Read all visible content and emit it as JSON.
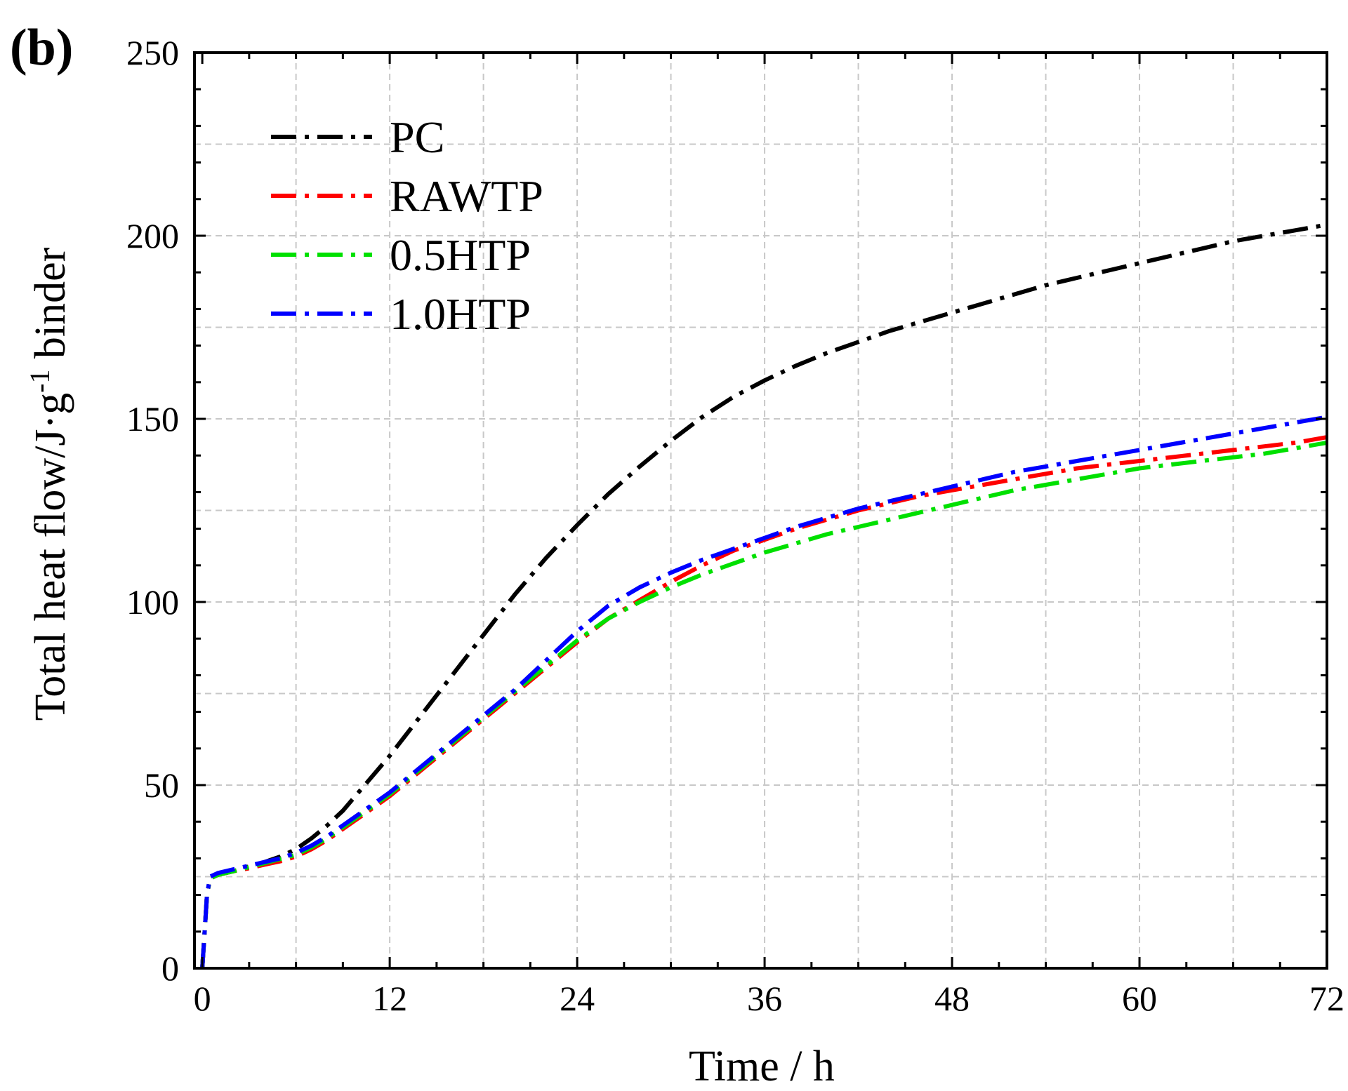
{
  "chart_data": {
    "type": "line",
    "panel_label": "(b)",
    "title": "",
    "xlabel": "Time / h",
    "ylabel_main": "Total heat flow/J·g",
    "ylabel_sup": "-1",
    "ylabel_tail": " binder",
    "xlim": [
      -0.5,
      72
    ],
    "ylim": [
      0,
      250
    ],
    "x_ticks": [
      0,
      12,
      24,
      36,
      48,
      60,
      72
    ],
    "y_ticks": [
      0,
      50,
      100,
      150,
      200,
      250
    ],
    "x_minor_step": 3,
    "y_minor_step": 10,
    "grid": true,
    "legend_position": "top-left",
    "series": [
      {
        "name": "PC",
        "color": "#000000",
        "points": [
          [
            0,
            0
          ],
          [
            0.15,
            10
          ],
          [
            0.3,
            20
          ],
          [
            0.5,
            24.5
          ],
          [
            1,
            25.5
          ],
          [
            2,
            26.5
          ],
          [
            3,
            27.8
          ],
          [
            4,
            29
          ],
          [
            5,
            30.5
          ],
          [
            6,
            32.5
          ],
          [
            7,
            35.5
          ],
          [
            8,
            39
          ],
          [
            9,
            43
          ],
          [
            10,
            48
          ],
          [
            11,
            53
          ],
          [
            12,
            58
          ],
          [
            13,
            63.5
          ],
          [
            14,
            69
          ],
          [
            15,
            74.5
          ],
          [
            16,
            80
          ],
          [
            17,
            85.5
          ],
          [
            18,
            91
          ],
          [
            19,
            96.5
          ],
          [
            20,
            102
          ],
          [
            22,
            112
          ],
          [
            24,
            121
          ],
          [
            26,
            129.5
          ],
          [
            28,
            137
          ],
          [
            30,
            144
          ],
          [
            32,
            150.5
          ],
          [
            34,
            156
          ],
          [
            36,
            160.5
          ],
          [
            38,
            164.5
          ],
          [
            40,
            168
          ],
          [
            42,
            171
          ],
          [
            44,
            174
          ],
          [
            46,
            176.5
          ],
          [
            48,
            179
          ],
          [
            50,
            181.5
          ],
          [
            52,
            184
          ],
          [
            54,
            186.5
          ],
          [
            56,
            188.5
          ],
          [
            58,
            190.5
          ],
          [
            60,
            192.5
          ],
          [
            62,
            194.5
          ],
          [
            64,
            196.5
          ],
          [
            66,
            198.5
          ],
          [
            68,
            200
          ],
          [
            70,
            201.5
          ],
          [
            72,
            203
          ]
        ]
      },
      {
        "name": "RAWTP",
        "color": "#ff0000",
        "points": [
          [
            0,
            0
          ],
          [
            0.15,
            10
          ],
          [
            0.3,
            20
          ],
          [
            0.5,
            24.5
          ],
          [
            1,
            25.5
          ],
          [
            2,
            26.5
          ],
          [
            3,
            27.3
          ],
          [
            4,
            28.3
          ],
          [
            5,
            29.2
          ],
          [
            6,
            30.5
          ],
          [
            7,
            32.5
          ],
          [
            8,
            35
          ],
          [
            9,
            38
          ],
          [
            10,
            41
          ],
          [
            11,
            44
          ],
          [
            12,
            47
          ],
          [
            13,
            50.5
          ],
          [
            14,
            54
          ],
          [
            15,
            57.5
          ],
          [
            16,
            61
          ],
          [
            17,
            64.5
          ],
          [
            18,
            68
          ],
          [
            19,
            71.5
          ],
          [
            20,
            75
          ],
          [
            22,
            82
          ],
          [
            24,
            89
          ],
          [
            26,
            95.5
          ],
          [
            28,
            100.5
          ],
          [
            30,
            105.5
          ],
          [
            32,
            110
          ],
          [
            34,
            114
          ],
          [
            36,
            117
          ],
          [
            38,
            120
          ],
          [
            40,
            122.5
          ],
          [
            42,
            125
          ],
          [
            44,
            127
          ],
          [
            46,
            129
          ],
          [
            48,
            130.5
          ],
          [
            50,
            132
          ],
          [
            52,
            133.5
          ],
          [
            54,
            135
          ],
          [
            56,
            136.5
          ],
          [
            58,
            137.5
          ],
          [
            60,
            138.5
          ],
          [
            62,
            139.5
          ],
          [
            64,
            140.5
          ],
          [
            66,
            141.5
          ],
          [
            68,
            142.5
          ],
          [
            70,
            143.5
          ],
          [
            72,
            145
          ]
        ]
      },
      {
        "name": "0.5HTP",
        "color": "#00e000",
        "points": [
          [
            0,
            0
          ],
          [
            0.15,
            10
          ],
          [
            0.3,
            20
          ],
          [
            0.5,
            24.5
          ],
          [
            1,
            25.5
          ],
          [
            2,
            26.5
          ],
          [
            3,
            27.6
          ],
          [
            4,
            28.7
          ],
          [
            5,
            29.8
          ],
          [
            6,
            31
          ],
          [
            7,
            33
          ],
          [
            8,
            35.5
          ],
          [
            9,
            38.5
          ],
          [
            10,
            41.5
          ],
          [
            11,
            44.5
          ],
          [
            12,
            47.5
          ],
          [
            13,
            51
          ],
          [
            14,
            54.5
          ],
          [
            15,
            58
          ],
          [
            16,
            61.5
          ],
          [
            17,
            65
          ],
          [
            18,
            68.5
          ],
          [
            19,
            72
          ],
          [
            20,
            75.5
          ],
          [
            22,
            82.5
          ],
          [
            24,
            89.5
          ],
          [
            26,
            95.5
          ],
          [
            28,
            100
          ],
          [
            30,
            104
          ],
          [
            32,
            107.5
          ],
          [
            34,
            110.5
          ],
          [
            36,
            113.5
          ],
          [
            38,
            116
          ],
          [
            40,
            118.5
          ],
          [
            42,
            120.5
          ],
          [
            44,
            122.5
          ],
          [
            46,
            124.5
          ],
          [
            48,
            126.5
          ],
          [
            50,
            128.5
          ],
          [
            52,
            130.5
          ],
          [
            54,
            132
          ],
          [
            56,
            133.5
          ],
          [
            58,
            135
          ],
          [
            60,
            136.5
          ],
          [
            62,
            137.5
          ],
          [
            64,
            138.5
          ],
          [
            66,
            139.5
          ],
          [
            68,
            140.5
          ],
          [
            70,
            142
          ],
          [
            72,
            143.5
          ]
        ]
      },
      {
        "name": "1.0HTP",
        "color": "#0000ff",
        "points": [
          [
            0,
            0
          ],
          [
            0.15,
            10
          ],
          [
            0.3,
            20
          ],
          [
            0.5,
            25
          ],
          [
            1,
            26
          ],
          [
            2,
            27
          ],
          [
            3,
            28
          ],
          [
            4,
            29
          ],
          [
            5,
            30
          ],
          [
            6,
            31.5
          ],
          [
            7,
            33.5
          ],
          [
            8,
            36
          ],
          [
            9,
            39
          ],
          [
            10,
            42
          ],
          [
            11,
            45
          ],
          [
            12,
            48
          ],
          [
            13,
            51.5
          ],
          [
            14,
            55
          ],
          [
            15,
            58.5
          ],
          [
            16,
            62
          ],
          [
            17,
            65.5
          ],
          [
            18,
            69
          ],
          [
            19,
            72.5
          ],
          [
            20,
            76
          ],
          [
            22,
            84
          ],
          [
            24,
            92
          ],
          [
            26,
            99
          ],
          [
            28,
            104
          ],
          [
            30,
            108
          ],
          [
            32,
            111.5
          ],
          [
            34,
            114.5
          ],
          [
            36,
            117.5
          ],
          [
            38,
            120.5
          ],
          [
            40,
            123
          ],
          [
            42,
            125.5
          ],
          [
            44,
            127.5
          ],
          [
            46,
            129.5
          ],
          [
            48,
            131.5
          ],
          [
            50,
            133.5
          ],
          [
            52,
            135.5
          ],
          [
            54,
            137
          ],
          [
            56,
            138.5
          ],
          [
            58,
            140
          ],
          [
            60,
            141.5
          ],
          [
            62,
            143
          ],
          [
            64,
            144.5
          ],
          [
            66,
            146
          ],
          [
            68,
            147.5
          ],
          [
            70,
            149
          ],
          [
            72,
            150.5
          ]
        ]
      }
    ]
  }
}
